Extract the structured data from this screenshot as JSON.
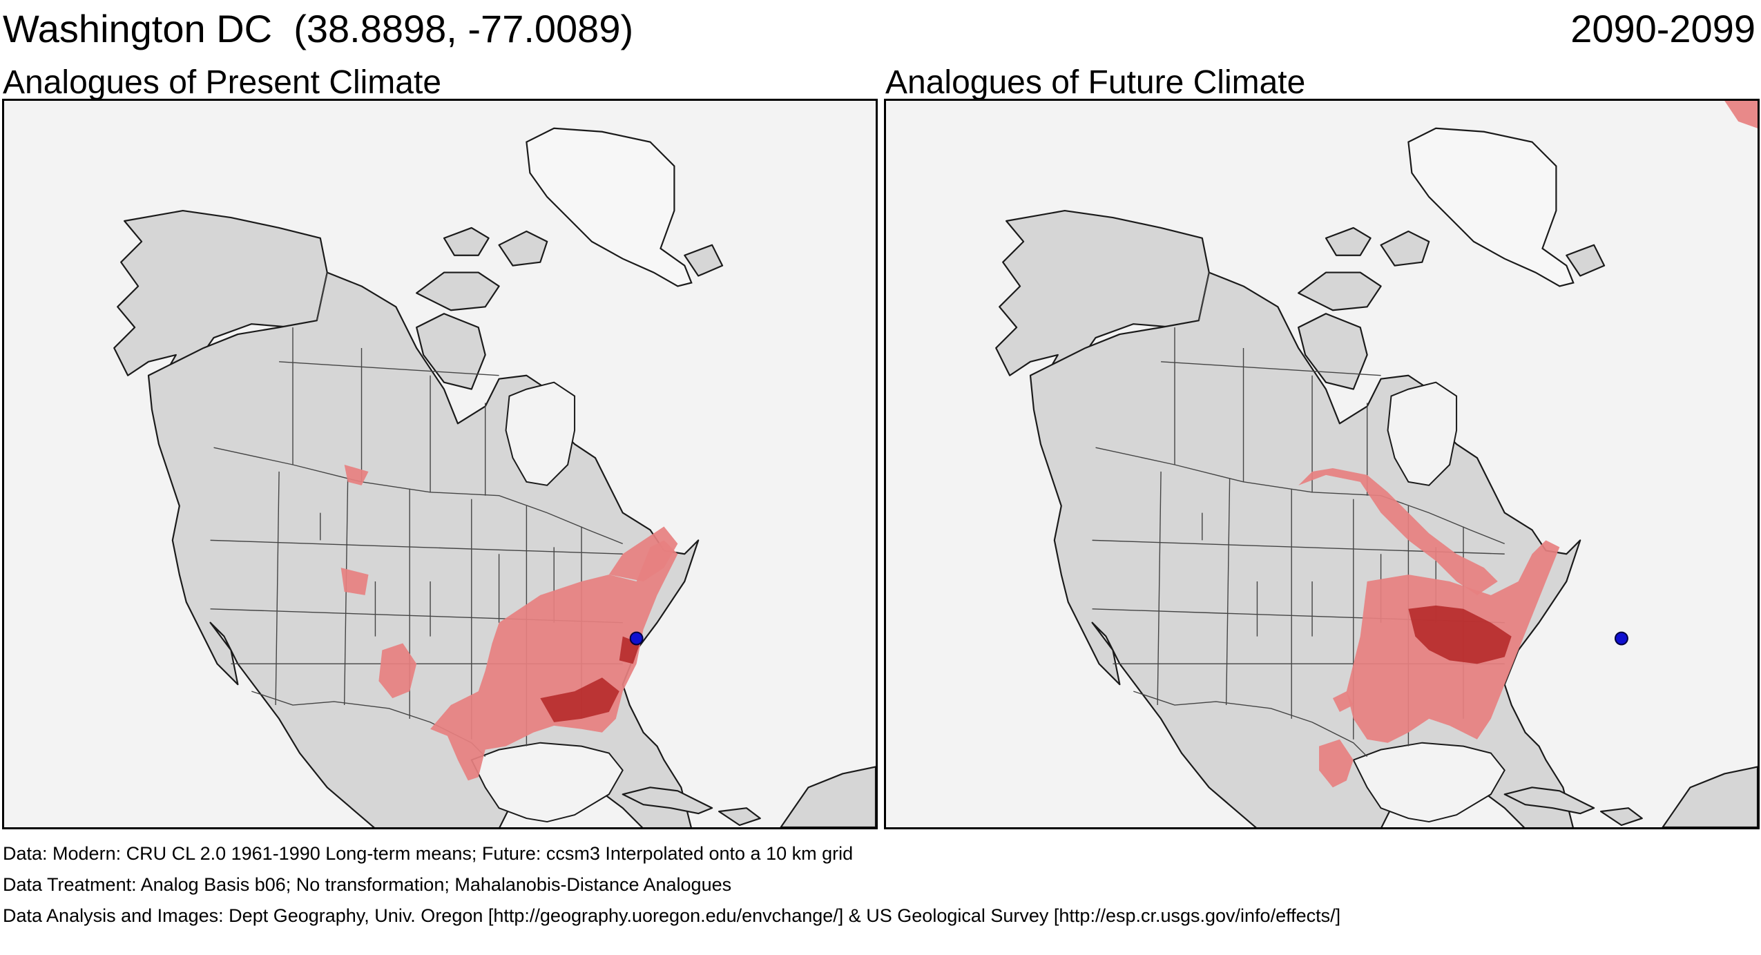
{
  "header": {
    "location": "Washington DC  (38.8898, -77.0089)",
    "period": "2090-2099"
  },
  "panels": [
    {
      "title": "Analogues of Present Climate"
    },
    {
      "title": "Analogues of Future Climate"
    }
  ],
  "footer": {
    "data": "Data:  Modern: CRU CL 2.0 1961-1990 Long-term means; Future: ccsm3 Interpolated onto a 10 km grid",
    "treatment": "Data Treatment:  Analog Basis b06; No transformation; Mahalanobis-Distance Analogues",
    "analysis": "Data Analysis and Images:  Dept Geography, Univ. Oregon [http://geography.uoregon.edu/envchange/] & US Geological Survey [http://esp.cr.usgs.gov/info/effects/]"
  },
  "colors": {
    "analog_light": "#e78080",
    "analog_dark": "#b32626",
    "site_marker": "#1010d0",
    "land": "#d6d6d6",
    "ocean": "#f3f3f3"
  }
}
